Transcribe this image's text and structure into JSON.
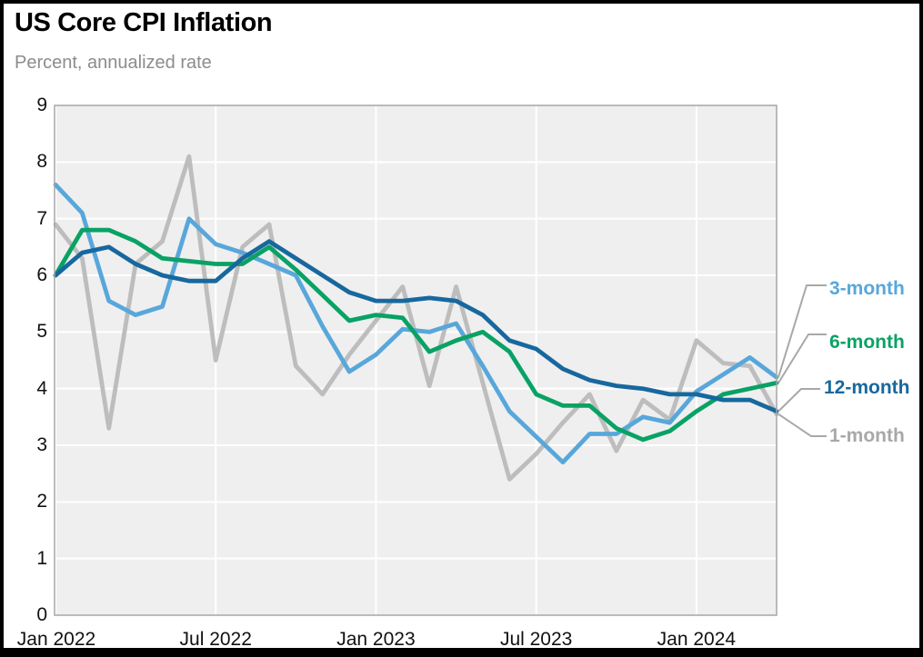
{
  "title": "US Core CPI Inflation",
  "subtitle": "Percent, annualized rate",
  "colors": {
    "series_3_month": "#58a7da",
    "series_6_month": "#09a265",
    "series_12_month": "#17689e",
    "series_1_month": "#bdbdbd",
    "legend_1_month_text": "#a8a8a8",
    "leader_line": "#a8a8a8",
    "plot_background": "#efefef",
    "plot_border": "#a6a6a6",
    "gridline": "#ffffff",
    "axis_text": "#111111",
    "subtitle_text": "#8c8c8c"
  },
  "chart_data": {
    "type": "line",
    "title": "US Core CPI Inflation",
    "subtitle": "Percent, annualized rate",
    "ylabel": "Percent, annualized rate",
    "ylim": [
      0,
      9
    ],
    "y_ticks": [
      "0",
      "1",
      "2",
      "3",
      "4",
      "5",
      "6",
      "7",
      "8",
      "9"
    ],
    "grid": true,
    "legend_position": "right-leader-lines",
    "x": [
      "Jan 2022",
      "Feb 2022",
      "Mar 2022",
      "Apr 2022",
      "May 2022",
      "Jun 2022",
      "Jul 2022",
      "Aug 2022",
      "Sep 2022",
      "Oct 2022",
      "Nov 2022",
      "Dec 2022",
      "Jan 2023",
      "Feb 2023",
      "Mar 2023",
      "Apr 2023",
      "May 2023",
      "Jun 2023",
      "Jul 2023",
      "Aug 2023",
      "Sep 2023",
      "Oct 2023",
      "Nov 2023",
      "Dec 2023",
      "Jan 2024",
      "Feb 2024",
      "Mar 2024",
      "Apr 2024"
    ],
    "x_tick_labels": [
      "Jan 2022",
      "Jul 2022",
      "Jan 2023",
      "Jul 2023",
      "Jan 2024"
    ],
    "x_tick_month_index": [
      0,
      6,
      12,
      18,
      24
    ],
    "series": [
      {
        "name": "1-month",
        "color": "#bdbdbd",
        "values": [
          6.9,
          6.3,
          3.3,
          6.2,
          6.6,
          8.1,
          4.5,
          6.5,
          6.9,
          4.4,
          3.9,
          4.6,
          5.2,
          5.8,
          4.05,
          5.8,
          4.1,
          2.4,
          2.85,
          3.4,
          3.9,
          2.9,
          3.8,
          3.45,
          4.85,
          4.45,
          4.4,
          3.55
        ]
      },
      {
        "name": "3-month",
        "color": "#58a7da",
        "values": [
          7.6,
          7.1,
          5.55,
          5.3,
          5.45,
          7.0,
          6.55,
          6.4,
          6.2,
          6.0,
          5.1,
          4.3,
          4.6,
          5.05,
          5.0,
          5.15,
          4.4,
          3.6,
          3.15,
          2.7,
          3.2,
          3.2,
          3.5,
          3.4,
          3.95,
          4.25,
          4.55,
          4.2
        ]
      },
      {
        "name": "6-month",
        "color": "#09a265",
        "values": [
          6.0,
          6.8,
          6.8,
          6.6,
          6.3,
          6.25,
          6.2,
          6.2,
          6.5,
          6.1,
          5.65,
          5.2,
          5.3,
          5.25,
          4.65,
          4.85,
          5.0,
          4.65,
          3.9,
          3.7,
          3.7,
          3.3,
          3.1,
          3.25,
          3.6,
          3.9,
          4.0,
          4.1
        ]
      },
      {
        "name": "12-month",
        "color": "#17689e",
        "values": [
          6.0,
          6.4,
          6.5,
          6.2,
          6.0,
          5.9,
          5.9,
          6.3,
          6.6,
          6.3,
          6.0,
          5.7,
          5.55,
          5.55,
          5.6,
          5.55,
          5.3,
          4.85,
          4.7,
          4.35,
          4.15,
          4.05,
          4.0,
          3.9,
          3.9,
          3.8,
          3.8,
          3.6
        ]
      }
    ],
    "legend": [
      {
        "label": "3-month",
        "series": "3-month",
        "text_color": "#58a7da"
      },
      {
        "label": "6-month",
        "series": "6-month",
        "text_color": "#09a265"
      },
      {
        "label": "12-month",
        "series": "12-month",
        "text_color": "#17689e"
      },
      {
        "label": "1-month",
        "series": "1-month",
        "text_color": "#a8a8a8"
      }
    ]
  }
}
